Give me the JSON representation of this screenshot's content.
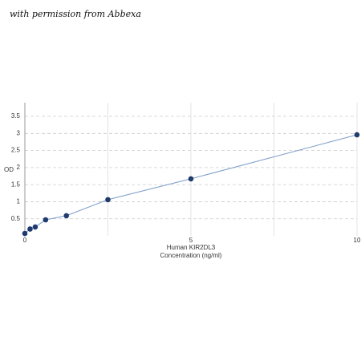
{
  "watermark": "with permission from Abbexa",
  "chart_data": {
    "type": "line",
    "title": "Human KIR2DL3",
    "x_label": "Concentration (ng/ml)",
    "y_label": "OD",
    "x": [
      0,
      0.156,
      0.312,
      0.625,
      1.25,
      2.5,
      5,
      10
    ],
    "series": [
      {
        "name": "Human KIR2DL3",
        "color": "#1f3a6e",
        "line_color": "#7a9cc8",
        "values": [
          0.07,
          0.2,
          0.26,
          0.47,
          0.59,
          1.06,
          1.67,
          2.96
        ]
      }
    ],
    "xlim": [
      0,
      10
    ],
    "xticks": [
      0,
      5,
      10
    ],
    "minor_xgrid": [
      2.5,
      7.5
    ],
    "ylim": [
      0,
      3.9
    ],
    "yticks": [
      0.5,
      1,
      1.5,
      2,
      2.5,
      3,
      3.5
    ],
    "grid": true
  }
}
